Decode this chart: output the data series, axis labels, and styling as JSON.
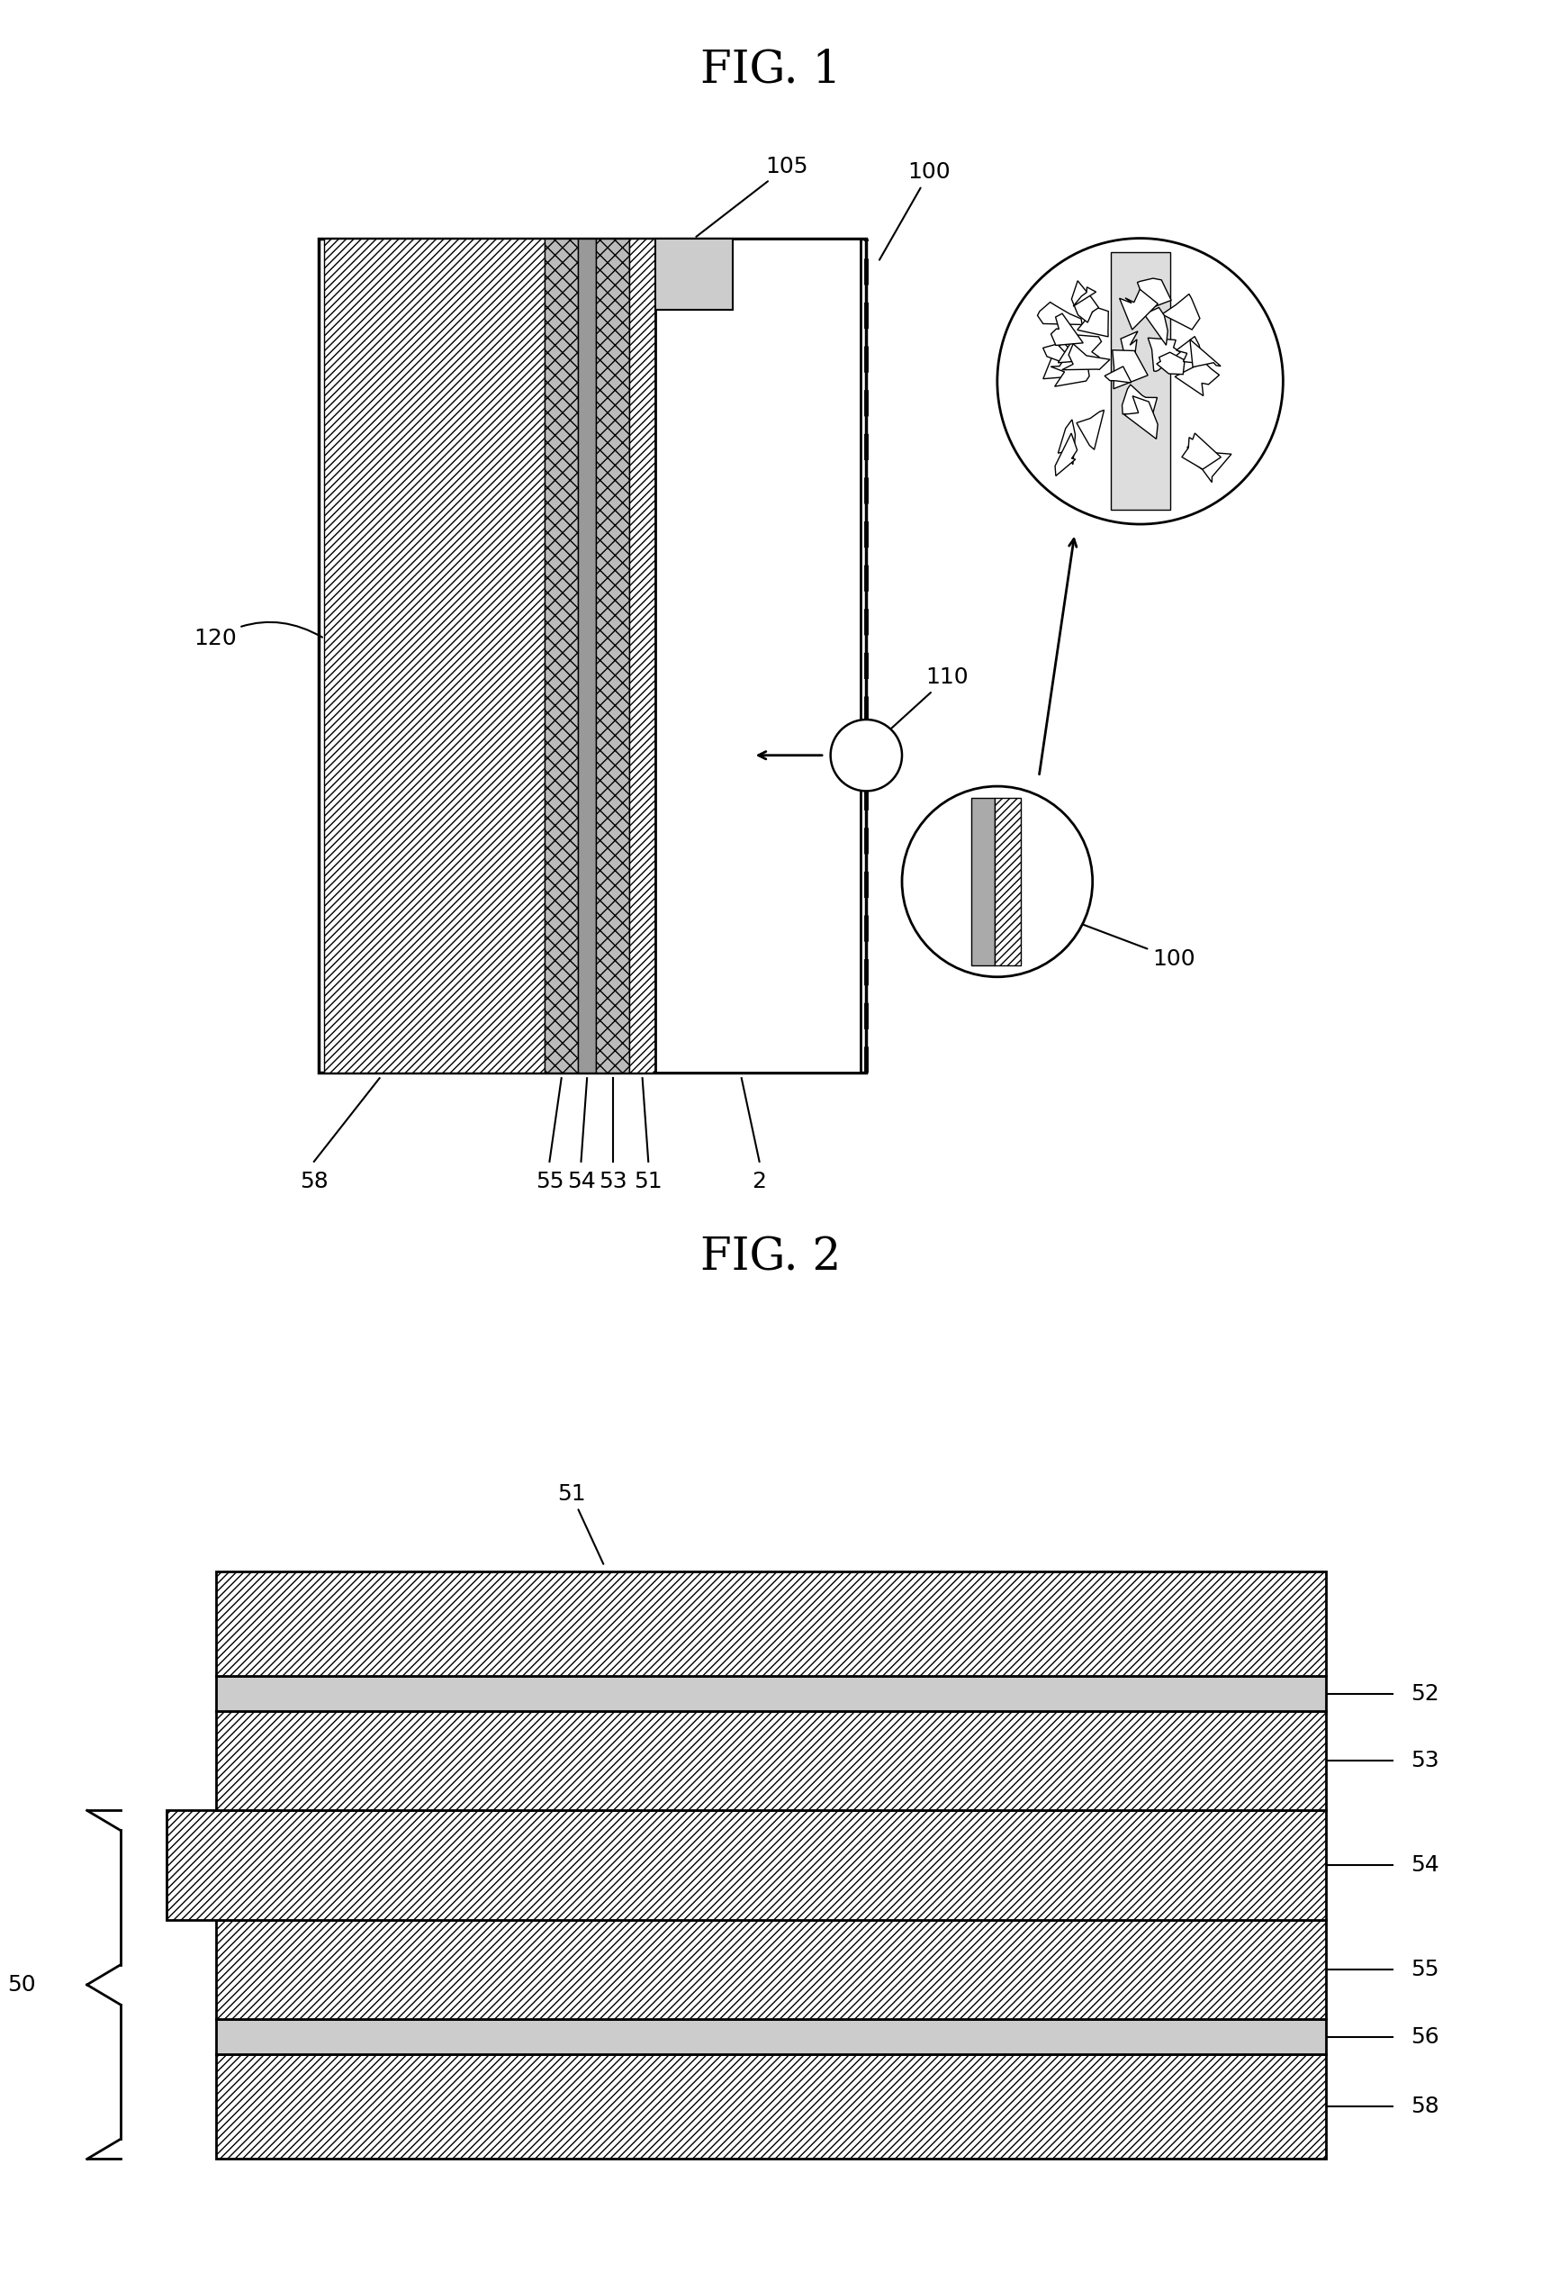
{
  "fig_title_1": "FIG. 1",
  "fig_title_2": "FIG. 2",
  "background_color": "#ffffff",
  "label_fontsize": 18,
  "title_fontsize": 36,
  "lw": 2.0
}
